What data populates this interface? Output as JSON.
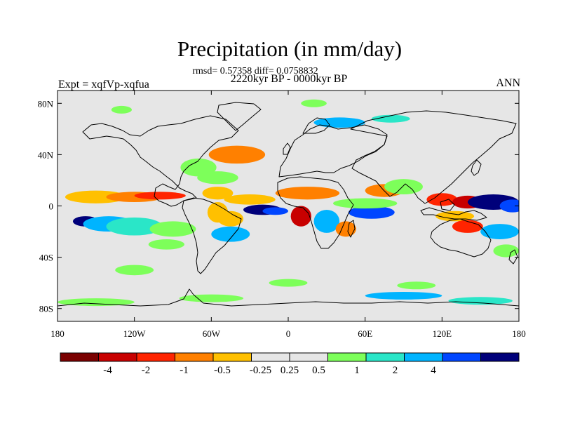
{
  "figure": {
    "title": "Precipitation (in mm/day)",
    "stats": "rmsd= 0.57358 diff= 0.0758832",
    "period": "2220kyr BP - 0000kyr BP",
    "left_label": "Expt = xqfVp-xqfua",
    "right_label": "ANN"
  },
  "map": {
    "projection": "cylindrical-equidistant",
    "lon_range": [
      -180,
      180
    ],
    "lat_range": [
      -90,
      90
    ],
    "background_color": "#e6e6e6",
    "x_ticks": [
      {
        "lon": -180,
        "label": "180"
      },
      {
        "lon": -120,
        "label": "120W"
      },
      {
        "lon": -60,
        "label": "60W"
      },
      {
        "lon": 0,
        "label": "0"
      },
      {
        "lon": 60,
        "label": "60E"
      },
      {
        "lon": 120,
        "label": "120E"
      },
      {
        "lon": 180,
        "label": "180"
      }
    ],
    "y_ticks": [
      {
        "lat": 80,
        "label": "80N"
      },
      {
        "lat": 40,
        "label": "40N"
      },
      {
        "lat": 0,
        "label": "0"
      },
      {
        "lat": -40,
        "label": "40S"
      },
      {
        "lat": -80,
        "label": "80S"
      }
    ],
    "anomalies": [
      {
        "lon": -170,
        "lat": 6,
        "level": 5,
        "rx": 20,
        "ry": 6
      },
      {
        "lon": -150,
        "lat": 7,
        "level": 4,
        "rx": 24,
        "ry": 5
      },
      {
        "lon": -120,
        "lat": 7,
        "level": 3,
        "rx": 22,
        "ry": 4
      },
      {
        "lon": -100,
        "lat": 8,
        "level": 2,
        "rx": 20,
        "ry": 3
      },
      {
        "lon": -158,
        "lat": -12,
        "level": 11,
        "rx": 10,
        "ry": 4
      },
      {
        "lon": -140,
        "lat": -14,
        "level": 9,
        "rx": 20,
        "ry": 6
      },
      {
        "lon": -120,
        "lat": -16,
        "level": 8,
        "rx": 22,
        "ry": 7
      },
      {
        "lon": -90,
        "lat": -18,
        "level": 7,
        "rx": 18,
        "ry": 6
      },
      {
        "lon": -95,
        "lat": -30,
        "level": 7,
        "rx": 14,
        "ry": 4
      },
      {
        "lon": -40,
        "lat": 40,
        "level": 3,
        "rx": 22,
        "ry": 7
      },
      {
        "lon": -70,
        "lat": 30,
        "level": 7,
        "rx": 14,
        "ry": 7
      },
      {
        "lon": -55,
        "lat": 22,
        "level": 7,
        "rx": 16,
        "ry": 5
      },
      {
        "lon": -55,
        "lat": 10,
        "level": 4,
        "rx": 12,
        "ry": 5
      },
      {
        "lon": -30,
        "lat": 5,
        "level": 4,
        "rx": 20,
        "ry": 4
      },
      {
        "lon": -55,
        "lat": -5,
        "level": 4,
        "rx": 8,
        "ry": 8
      },
      {
        "lon": -45,
        "lat": -10,
        "level": 4,
        "rx": 10,
        "ry": 6
      },
      {
        "lon": -20,
        "lat": -3,
        "level": 11,
        "rx": 15,
        "ry": 4
      },
      {
        "lon": -10,
        "lat": -4,
        "level": 10,
        "rx": 10,
        "ry": 3
      },
      {
        "lon": -45,
        "lat": -22,
        "level": 9,
        "rx": 15,
        "ry": 6
      },
      {
        "lon": 15,
        "lat": 10,
        "level": 3,
        "rx": 25,
        "ry": 5
      },
      {
        "lon": 10,
        "lat": -8,
        "level": 1,
        "rx": 8,
        "ry": 8
      },
      {
        "lon": 30,
        "lat": -12,
        "level": 9,
        "rx": 10,
        "ry": 9
      },
      {
        "lon": 45,
        "lat": -18,
        "level": 3,
        "rx": 8,
        "ry": 6
      },
      {
        "lon": 65,
        "lat": -5,
        "level": 10,
        "rx": 18,
        "ry": 5
      },
      {
        "lon": 60,
        "lat": 2,
        "level": 7,
        "rx": 25,
        "ry": 4
      },
      {
        "lon": 75,
        "lat": 12,
        "level": 3,
        "rx": 15,
        "ry": 5
      },
      {
        "lon": 90,
        "lat": 15,
        "level": 7,
        "rx": 15,
        "ry": 6
      },
      {
        "lon": 120,
        "lat": 5,
        "level": 2,
        "rx": 12,
        "ry": 5
      },
      {
        "lon": 140,
        "lat": 3,
        "level": 1,
        "rx": 12,
        "ry": 5
      },
      {
        "lon": 160,
        "lat": 3,
        "level": 11,
        "rx": 20,
        "ry": 6
      },
      {
        "lon": 175,
        "lat": 0,
        "level": 10,
        "rx": 10,
        "ry": 5
      },
      {
        "lon": 130,
        "lat": -8,
        "level": 4,
        "rx": 15,
        "ry": 4
      },
      {
        "lon": 140,
        "lat": -16,
        "level": 2,
        "rx": 12,
        "ry": 5
      },
      {
        "lon": 165,
        "lat": -20,
        "level": 9,
        "rx": 15,
        "ry": 6
      },
      {
        "lon": 170,
        "lat": -35,
        "level": 7,
        "rx": 10,
        "ry": 5
      },
      {
        "lon": 40,
        "lat": 65,
        "level": 9,
        "rx": 20,
        "ry": 4
      },
      {
        "lon": 80,
        "lat": 68,
        "level": 8,
        "rx": 15,
        "ry": 3
      },
      {
        "lon": -130,
        "lat": 75,
        "level": 7,
        "rx": 8,
        "ry": 3
      },
      {
        "lon": 20,
        "lat": 80,
        "level": 7,
        "rx": 10,
        "ry": 3
      },
      {
        "lon": -150,
        "lat": -75,
        "level": 7,
        "rx": 30,
        "ry": 3
      },
      {
        "lon": -60,
        "lat": -72,
        "level": 7,
        "rx": 25,
        "ry": 3
      },
      {
        "lon": 90,
        "lat": -70,
        "level": 9,
        "rx": 30,
        "ry": 3
      },
      {
        "lon": 150,
        "lat": -74,
        "level": 8,
        "rx": 25,
        "ry": 3
      },
      {
        "lon": 0,
        "lat": -60,
        "level": 7,
        "rx": 15,
        "ry": 3
      },
      {
        "lon": 100,
        "lat": -62,
        "level": 7,
        "rx": 15,
        "ry": 3
      },
      {
        "lon": -120,
        "lat": -50,
        "level": 7,
        "rx": 15,
        "ry": 4
      }
    ]
  },
  "colorbar": {
    "colors": [
      "#7a0000",
      "#c80000",
      "#ff2400",
      "#ff8000",
      "#ffc000",
      "#e6e6e6",
      "#e6e6e6",
      "#7dff5a",
      "#2ae6c8",
      "#00b4ff",
      "#0046ff",
      "#00007a"
    ],
    "labels": [
      "-4",
      "-2",
      "-1",
      "-0.5",
      "-0.25",
      "0.25",
      "0.5",
      "1",
      "2",
      "4"
    ]
  }
}
